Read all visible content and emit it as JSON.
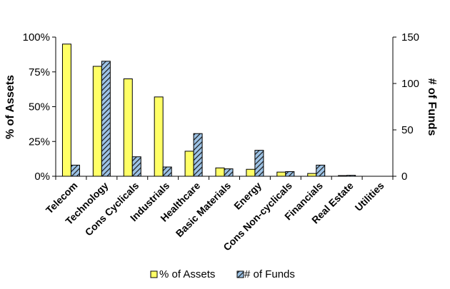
{
  "chart_data": {
    "type": "bar",
    "categories": [
      "Telecom",
      "Technology",
      "Cons Cyclicals",
      "Industrials",
      "Healthcare",
      "Basic Materials",
      "Energy",
      "Cons Non-cyclicals",
      "Financials",
      "Real Estate",
      "Utilities"
    ],
    "series": [
      {
        "name": "% of Assets",
        "axis": "left",
        "color": "#ffff66",
        "values": [
          0.95,
          0.79,
          0.7,
          0.57,
          0.18,
          0.06,
          0.05,
          0.03,
          0.02,
          0.005,
          0.0
        ]
      },
      {
        "name": "# of Funds",
        "axis": "right",
        "color": "#9dc3e6",
        "pattern": "diagonal-hatch",
        "values": [
          12,
          124,
          21,
          10,
          46,
          8,
          28,
          5,
          12,
          1,
          0
        ]
      }
    ],
    "ylabel": "% of Assets",
    "y2label": "# of Funds",
    "ylim": [
      0,
      1
    ],
    "y2lim": [
      0,
      150
    ],
    "yticks": [
      "0%",
      "25%",
      "50%",
      "75%",
      "100%"
    ],
    "y2ticks": [
      "0",
      "50",
      "100",
      "150"
    ],
    "grid": false,
    "legend": "bottom"
  }
}
